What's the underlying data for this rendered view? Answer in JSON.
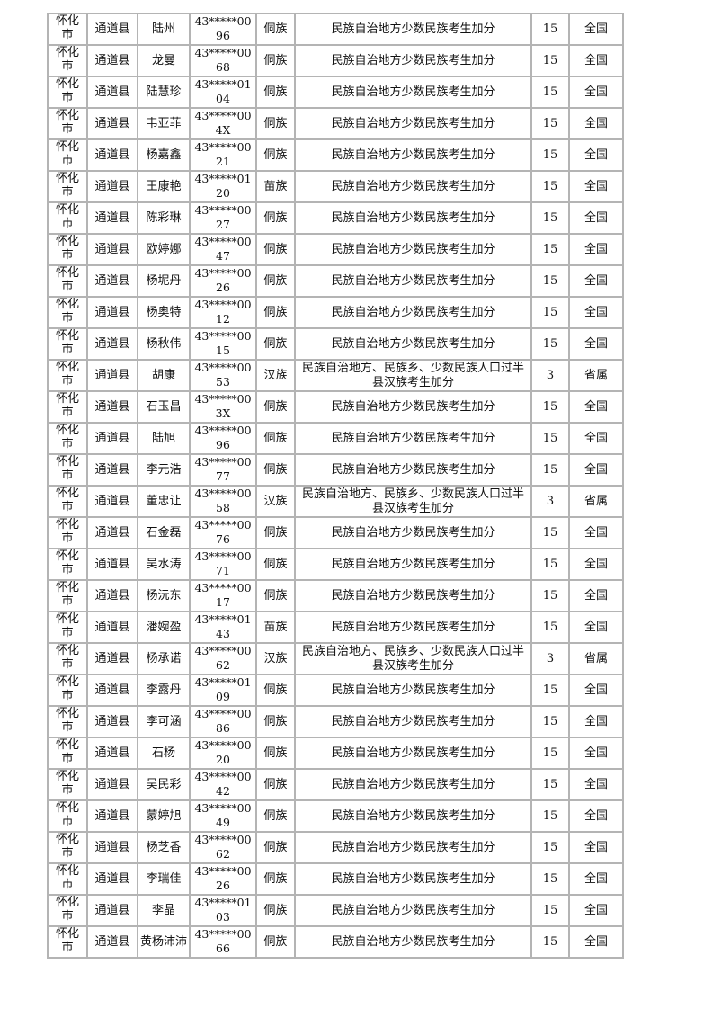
{
  "rows": [
    {
      "city": "怀化市",
      "county": "通道县",
      "name": "陆州",
      "id": "43*****0096",
      "ethnicity": "侗族",
      "item": "民族自治地方少数民族考生加分",
      "points": "15",
      "scope": "全国"
    },
    {
      "city": "怀化市",
      "county": "通道县",
      "name": "龙曼",
      "id": "43*****0068",
      "ethnicity": "侗族",
      "item": "民族自治地方少数民族考生加分",
      "points": "15",
      "scope": "全国"
    },
    {
      "city": "怀化市",
      "county": "通道县",
      "name": "陆慧珍",
      "id": "43*****0104",
      "ethnicity": "侗族",
      "item": "民族自治地方少数民族考生加分",
      "points": "15",
      "scope": "全国"
    },
    {
      "city": "怀化市",
      "county": "通道县",
      "name": "韦亚菲",
      "id": "43*****004X",
      "ethnicity": "侗族",
      "item": "民族自治地方少数民族考生加分",
      "points": "15",
      "scope": "全国"
    },
    {
      "city": "怀化市",
      "county": "通道县",
      "name": "杨嘉鑫",
      "id": "43*****0021",
      "ethnicity": "侗族",
      "item": "民族自治地方少数民族考生加分",
      "points": "15",
      "scope": "全国"
    },
    {
      "city": "怀化市",
      "county": "通道县",
      "name": "王康艳",
      "id": "43*****0120",
      "ethnicity": "苗族",
      "item": "民族自治地方少数民族考生加分",
      "points": "15",
      "scope": "全国"
    },
    {
      "city": "怀化市",
      "county": "通道县",
      "name": "陈彩琳",
      "id": "43*****0027",
      "ethnicity": "侗族",
      "item": "民族自治地方少数民族考生加分",
      "points": "15",
      "scope": "全国"
    },
    {
      "city": "怀化市",
      "county": "通道县",
      "name": "欧婷娜",
      "id": "43*****0047",
      "ethnicity": "侗族",
      "item": "民族自治地方少数民族考生加分",
      "points": "15",
      "scope": "全国"
    },
    {
      "city": "怀化市",
      "county": "通道县",
      "name": "杨坭丹",
      "id": "43*****0026",
      "ethnicity": "侗族",
      "item": "民族自治地方少数民族考生加分",
      "points": "15",
      "scope": "全国"
    },
    {
      "city": "怀化市",
      "county": "通道县",
      "name": "杨奥特",
      "id": "43*****0012",
      "ethnicity": "侗族",
      "item": "民族自治地方少数民族考生加分",
      "points": "15",
      "scope": "全国"
    },
    {
      "city": "怀化市",
      "county": "通道县",
      "name": "杨秋伟",
      "id": "43*****0015",
      "ethnicity": "侗族",
      "item": "民族自治地方少数民族考生加分",
      "points": "15",
      "scope": "全国"
    },
    {
      "city": "怀化市",
      "county": "通道县",
      "name": "胡康",
      "id": "43*****0053",
      "ethnicity": "汉族",
      "item": "民族自治地方、民族乡、少数民族人口过半县汉族考生加分",
      "points": "3",
      "scope": "省属"
    },
    {
      "city": "怀化市",
      "county": "通道县",
      "name": "石玉昌",
      "id": "43*****003X",
      "ethnicity": "侗族",
      "item": "民族自治地方少数民族考生加分",
      "points": "15",
      "scope": "全国"
    },
    {
      "city": "怀化市",
      "county": "通道县",
      "name": "陆旭",
      "id": "43*****0096",
      "ethnicity": "侗族",
      "item": "民族自治地方少数民族考生加分",
      "points": "15",
      "scope": "全国"
    },
    {
      "city": "怀化市",
      "county": "通道县",
      "name": "李元浩",
      "id": "43*****0077",
      "ethnicity": "侗族",
      "item": "民族自治地方少数民族考生加分",
      "points": "15",
      "scope": "全国"
    },
    {
      "city": "怀化市",
      "county": "通道县",
      "name": "董忠让",
      "id": "43*****0058",
      "ethnicity": "汉族",
      "item": "民族自治地方、民族乡、少数民族人口过半县汉族考生加分",
      "points": "3",
      "scope": "省属"
    },
    {
      "city": "怀化市",
      "county": "通道县",
      "name": "石金磊",
      "id": "43*****0076",
      "ethnicity": "侗族",
      "item": "民族自治地方少数民族考生加分",
      "points": "15",
      "scope": "全国"
    },
    {
      "city": "怀化市",
      "county": "通道县",
      "name": "吴水涛",
      "id": "43*****0071",
      "ethnicity": "侗族",
      "item": "民族自治地方少数民族考生加分",
      "points": "15",
      "scope": "全国"
    },
    {
      "city": "怀化市",
      "county": "通道县",
      "name": "杨沅东",
      "id": "43*****0017",
      "ethnicity": "侗族",
      "item": "民族自治地方少数民族考生加分",
      "points": "15",
      "scope": "全国"
    },
    {
      "city": "怀化市",
      "county": "通道县",
      "name": "潘婉盈",
      "id": "43*****0143",
      "ethnicity": "苗族",
      "item": "民族自治地方少数民族考生加分",
      "points": "15",
      "scope": "全国"
    },
    {
      "city": "怀化市",
      "county": "通道县",
      "name": "杨承诺",
      "id": "43*****0062",
      "ethnicity": "汉族",
      "item": "民族自治地方、民族乡、少数民族人口过半县汉族考生加分",
      "points": "3",
      "scope": "省属"
    },
    {
      "city": "怀化市",
      "county": "通道县",
      "name": "李露丹",
      "id": "43*****0109",
      "ethnicity": "侗族",
      "item": "民族自治地方少数民族考生加分",
      "points": "15",
      "scope": "全国"
    },
    {
      "city": "怀化市",
      "county": "通道县",
      "name": "李可涵",
      "id": "43*****0086",
      "ethnicity": "侗族",
      "item": "民族自治地方少数民族考生加分",
      "points": "15",
      "scope": "全国"
    },
    {
      "city": "怀化市",
      "county": "通道县",
      "name": "石杨",
      "id": "43*****0020",
      "ethnicity": "侗族",
      "item": "民族自治地方少数民族考生加分",
      "points": "15",
      "scope": "全国"
    },
    {
      "city": "怀化市",
      "county": "通道县",
      "name": "吴民彩",
      "id": "43*****0042",
      "ethnicity": "侗族",
      "item": "民族自治地方少数民族考生加分",
      "points": "15",
      "scope": "全国"
    },
    {
      "city": "怀化市",
      "county": "通道县",
      "name": "蒙婷旭",
      "id": "43*****0049",
      "ethnicity": "侗族",
      "item": "民族自治地方少数民族考生加分",
      "points": "15",
      "scope": "全国"
    },
    {
      "city": "怀化市",
      "county": "通道县",
      "name": "杨芝香",
      "id": "43*****0062",
      "ethnicity": "侗族",
      "item": "民族自治地方少数民族考生加分",
      "points": "15",
      "scope": "全国"
    },
    {
      "city": "怀化市",
      "county": "通道县",
      "name": "李瑞佳",
      "id": "43*****0026",
      "ethnicity": "侗族",
      "item": "民族自治地方少数民族考生加分",
      "points": "15",
      "scope": "全国"
    },
    {
      "city": "怀化市",
      "county": "通道县",
      "name": "李晶",
      "id": "43*****0103",
      "ethnicity": "侗族",
      "item": "民族自治地方少数民族考生加分",
      "points": "15",
      "scope": "全国"
    },
    {
      "city": "怀化市",
      "county": "通道县",
      "name": "黄杨沛沛",
      "id": "43*****0066",
      "ethnicity": "侗族",
      "item": "民族自治地方少数民族考生加分",
      "points": "15",
      "scope": "全国"
    }
  ]
}
